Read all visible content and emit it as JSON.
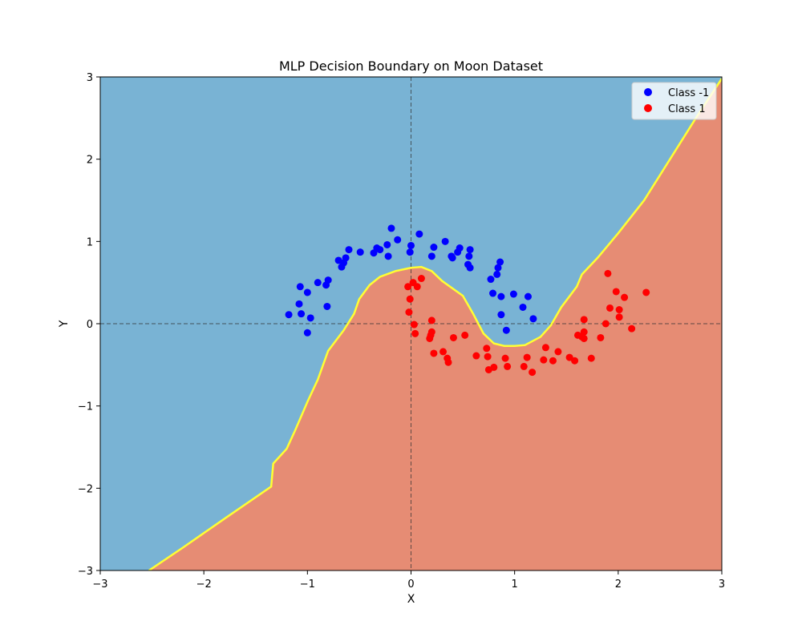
{
  "chart_data": {
    "type": "scatter",
    "title": "MLP Decision Boundary on Moon Dataset",
    "xlabel": "X",
    "ylabel": "Y",
    "xlim": [
      -3,
      3
    ],
    "ylim": [
      -3,
      3
    ],
    "xticks": [
      -3,
      -2,
      -1,
      0,
      1,
      2,
      3
    ],
    "yticks": [
      -3,
      -2,
      -1,
      0,
      1,
      2,
      3
    ],
    "xtick_labels": [
      "−3",
      "−2",
      "−1",
      "0",
      "1",
      "2",
      "3"
    ],
    "ytick_labels": [
      "−3",
      "−2",
      "−1",
      "0",
      "1",
      "2",
      "3"
    ],
    "grid": false,
    "reference_lines": {
      "x": 0,
      "y": 0,
      "style": "dashed"
    },
    "legend_placement": "top-right",
    "region_colors": {
      "class_neg": "#79b3d4",
      "class_pos": "#e68c74"
    },
    "boundary_color": "#ffff33",
    "decision_boundary": [
      [
        -2.53,
        -3.0
      ],
      [
        -2.2,
        -2.72
      ],
      [
        -1.8,
        -2.37
      ],
      [
        -1.35,
        -1.98
      ],
      [
        -1.33,
        -1.7
      ],
      [
        -1.2,
        -1.52
      ],
      [
        -1.12,
        -1.3
      ],
      [
        -1.0,
        -0.95
      ],
      [
        -0.9,
        -0.68
      ],
      [
        -0.8,
        -0.33
      ],
      [
        -0.65,
        -0.08
      ],
      [
        -0.55,
        0.12
      ],
      [
        -0.5,
        0.3
      ],
      [
        -0.4,
        0.47
      ],
      [
        -0.3,
        0.57
      ],
      [
        -0.15,
        0.64
      ],
      [
        0.0,
        0.68
      ],
      [
        0.1,
        0.69
      ],
      [
        0.2,
        0.64
      ],
      [
        0.3,
        0.52
      ],
      [
        0.5,
        0.34
      ],
      [
        0.6,
        0.12
      ],
      [
        0.7,
        -0.12
      ],
      [
        0.8,
        -0.24
      ],
      [
        0.9,
        -0.27
      ],
      [
        1.0,
        -0.27
      ],
      [
        1.1,
        -0.26
      ],
      [
        1.25,
        -0.16
      ],
      [
        1.35,
        -0.02
      ],
      [
        1.45,
        0.2
      ],
      [
        1.6,
        0.45
      ],
      [
        1.65,
        0.6
      ],
      [
        1.8,
        0.8
      ],
      [
        2.0,
        1.1
      ],
      [
        2.25,
        1.5
      ],
      [
        2.5,
        2.0
      ],
      [
        2.75,
        2.5
      ],
      [
        3.0,
        2.98
      ]
    ],
    "series": [
      {
        "name": "Class -1",
        "color": "#0000ff",
        "points": [
          [
            -1.18,
            0.11
          ],
          [
            -1.07,
            0.45
          ],
          [
            -1.08,
            0.24
          ],
          [
            -1.06,
            0.12
          ],
          [
            -1.0,
            0.38
          ],
          [
            -1.0,
            -0.11
          ],
          [
            -0.97,
            0.07
          ],
          [
            -0.9,
            0.5
          ],
          [
            -0.82,
            0.47
          ],
          [
            -0.8,
            0.53
          ],
          [
            -0.81,
            0.21
          ],
          [
            -0.7,
            0.77
          ],
          [
            -0.67,
            0.69
          ],
          [
            -0.65,
            0.74
          ],
          [
            -0.63,
            0.8
          ],
          [
            -0.6,
            0.9
          ],
          [
            -0.49,
            0.87
          ],
          [
            -0.36,
            0.86
          ],
          [
            -0.33,
            0.92
          ],
          [
            -0.3,
            0.9
          ],
          [
            -0.23,
            0.96
          ],
          [
            -0.22,
            0.82
          ],
          [
            -0.19,
            1.16
          ],
          [
            -0.13,
            1.02
          ],
          [
            -0.01,
            0.87
          ],
          [
            0.0,
            0.95
          ],
          [
            0.08,
            1.09
          ],
          [
            0.2,
            0.82
          ],
          [
            0.22,
            0.93
          ],
          [
            0.33,
            1.0
          ],
          [
            0.39,
            0.82
          ],
          [
            0.4,
            0.8
          ],
          [
            0.45,
            0.87
          ],
          [
            0.47,
            0.92
          ],
          [
            0.55,
            0.72
          ],
          [
            0.56,
            0.82
          ],
          [
            0.57,
            0.68
          ],
          [
            0.57,
            0.9
          ],
          [
            0.77,
            0.54
          ],
          [
            0.79,
            0.37
          ],
          [
            0.83,
            0.6
          ],
          [
            0.84,
            0.68
          ],
          [
            0.86,
            0.75
          ],
          [
            0.87,
            0.33
          ],
          [
            0.87,
            0.11
          ],
          [
            0.92,
            -0.08
          ],
          [
            0.99,
            0.36
          ],
          [
            1.08,
            0.2
          ],
          [
            1.13,
            0.33
          ],
          [
            1.18,
            0.06
          ]
        ]
      },
      {
        "name": "Class 1",
        "color": "#ff0000",
        "points": [
          [
            -0.03,
            0.45
          ],
          [
            -0.02,
            0.14
          ],
          [
            -0.01,
            0.3
          ],
          [
            0.02,
            0.5
          ],
          [
            0.03,
            -0.01
          ],
          [
            0.04,
            -0.12
          ],
          [
            0.06,
            0.45
          ],
          [
            0.1,
            0.55
          ],
          [
            0.18,
            -0.18
          ],
          [
            0.19,
            -0.14
          ],
          [
            0.2,
            -0.1
          ],
          [
            0.2,
            0.04
          ],
          [
            0.22,
            -0.36
          ],
          [
            0.31,
            -0.34
          ],
          [
            0.35,
            -0.42
          ],
          [
            0.36,
            -0.47
          ],
          [
            0.41,
            -0.17
          ],
          [
            0.52,
            -0.14
          ],
          [
            0.63,
            -0.39
          ],
          [
            0.73,
            -0.3
          ],
          [
            0.74,
            -0.4
          ],
          [
            0.75,
            -0.56
          ],
          [
            0.8,
            -0.53
          ],
          [
            0.91,
            -0.42
          ],
          [
            0.93,
            -0.52
          ],
          [
            1.09,
            -0.52
          ],
          [
            1.12,
            -0.41
          ],
          [
            1.17,
            -0.59
          ],
          [
            1.28,
            -0.44
          ],
          [
            1.3,
            -0.29
          ],
          [
            1.37,
            -0.45
          ],
          [
            1.42,
            -0.34
          ],
          [
            1.53,
            -0.41
          ],
          [
            1.58,
            -0.45
          ],
          [
            1.61,
            -0.14
          ],
          [
            1.65,
            -0.16
          ],
          [
            1.67,
            -0.1
          ],
          [
            1.67,
            0.05
          ],
          [
            1.67,
            -0.18
          ],
          [
            1.74,
            -0.42
          ],
          [
            1.83,
            -0.17
          ],
          [
            1.88,
            0.0
          ],
          [
            1.9,
            0.61
          ],
          [
            1.92,
            0.19
          ],
          [
            1.98,
            0.39
          ],
          [
            2.01,
            0.17
          ],
          [
            2.01,
            0.08
          ],
          [
            2.06,
            0.32
          ],
          [
            2.13,
            -0.06
          ],
          [
            2.27,
            0.38
          ]
        ]
      }
    ]
  }
}
